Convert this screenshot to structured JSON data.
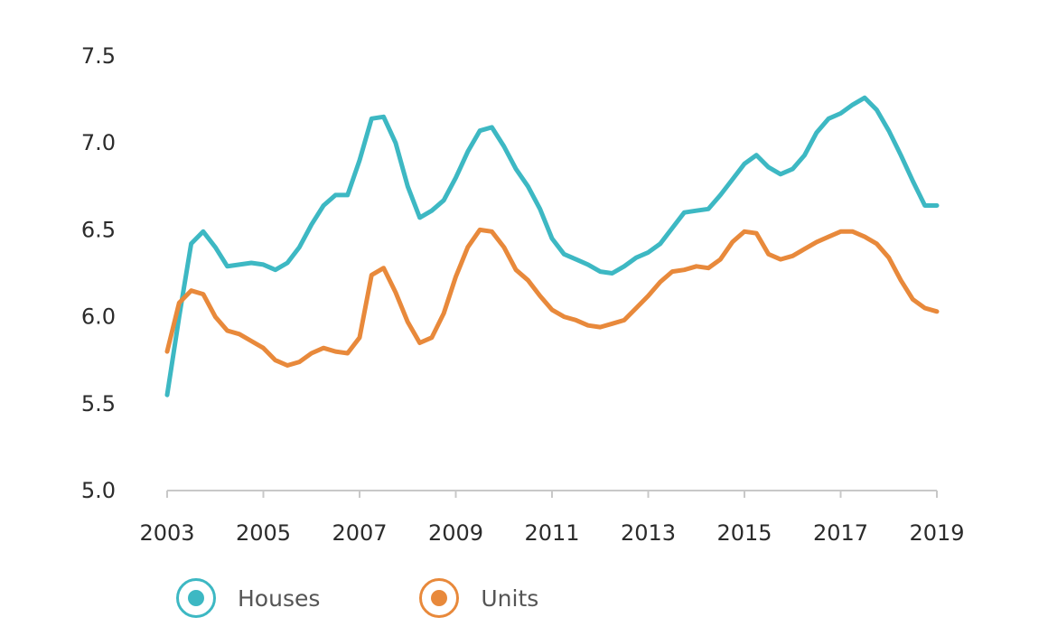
{
  "chart_data": {
    "type": "line",
    "title": "",
    "xlabel": "",
    "ylabel": "",
    "ylim": [
      5.0,
      7.5
    ],
    "xlim": [
      2003,
      2019
    ],
    "y_ticks": [
      "5.0",
      "5.5",
      "6.0",
      "6.5",
      "7.0",
      "7.5"
    ],
    "x_ticks": [
      "2003",
      "2005",
      "2007",
      "2009",
      "2011",
      "2013",
      "2015",
      "2017",
      "2019"
    ],
    "grid": false,
    "legend_position": "bottom",
    "series": [
      {
        "name": "Houses",
        "color": "#3db8c3",
        "x": [
          2003.0,
          2003.25,
          2003.5,
          2003.75,
          2004.0,
          2004.25,
          2004.5,
          2004.75,
          2005.0,
          2005.25,
          2005.5,
          2005.75,
          2006.0,
          2006.25,
          2006.5,
          2006.75,
          2007.0,
          2007.25,
          2007.5,
          2007.75,
          2008.0,
          2008.25,
          2008.5,
          2008.75,
          2009.0,
          2009.25,
          2009.5,
          2009.75,
          2010.0,
          2010.25,
          2010.5,
          2010.75,
          2011.0,
          2011.25,
          2011.5,
          2011.75,
          2012.0,
          2012.25,
          2012.5,
          2012.75,
          2013.0,
          2013.25,
          2013.5,
          2013.75,
          2014.0,
          2014.25,
          2014.5,
          2014.75,
          2015.0,
          2015.25,
          2015.5,
          2015.75,
          2016.0,
          2016.25,
          2016.5,
          2016.75,
          2017.0,
          2017.25,
          2017.5,
          2017.75,
          2018.0,
          2018.25,
          2018.5,
          2018.75,
          2019.0
        ],
        "values": [
          5.55,
          6.0,
          6.42,
          6.49,
          6.4,
          6.29,
          6.3,
          6.31,
          6.3,
          6.27,
          6.31,
          6.4,
          6.53,
          6.64,
          6.7,
          6.7,
          6.9,
          7.14,
          7.15,
          7.0,
          6.75,
          6.57,
          6.61,
          6.67,
          6.8,
          6.95,
          7.07,
          7.09,
          6.98,
          6.85,
          6.75,
          6.62,
          6.45,
          6.36,
          6.33,
          6.3,
          6.26,
          6.25,
          6.29,
          6.34,
          6.37,
          6.42,
          6.51,
          6.6,
          6.61,
          6.62,
          6.7,
          6.79,
          6.88,
          6.93,
          6.86,
          6.82,
          6.85,
          6.93,
          7.06,
          7.14,
          7.17,
          7.22,
          7.26,
          7.19,
          7.07,
          6.93,
          6.78,
          6.64,
          6.64
        ]
      },
      {
        "name": "Units",
        "color": "#e8893b",
        "x": [
          2003.0,
          2003.25,
          2003.5,
          2003.75,
          2004.0,
          2004.25,
          2004.5,
          2004.75,
          2005.0,
          2005.25,
          2005.5,
          2005.75,
          2006.0,
          2006.25,
          2006.5,
          2006.75,
          2007.0,
          2007.25,
          2007.5,
          2007.75,
          2008.0,
          2008.25,
          2008.5,
          2008.75,
          2009.0,
          2009.25,
          2009.5,
          2009.75,
          2010.0,
          2010.25,
          2010.5,
          2010.75,
          2011.0,
          2011.25,
          2011.5,
          2011.75,
          2012.0,
          2012.25,
          2012.5,
          2012.75,
          2013.0,
          2013.25,
          2013.5,
          2013.75,
          2014.0,
          2014.25,
          2014.5,
          2014.75,
          2015.0,
          2015.25,
          2015.5,
          2015.75,
          2016.0,
          2016.25,
          2016.5,
          2016.75,
          2017.0,
          2017.25,
          2017.5,
          2017.75,
          2018.0,
          2018.25,
          2018.5,
          2018.75,
          2019.0
        ],
        "values": [
          5.8,
          6.08,
          6.15,
          6.13,
          6.0,
          5.92,
          5.9,
          5.86,
          5.82,
          5.75,
          5.72,
          5.74,
          5.79,
          5.82,
          5.8,
          5.79,
          5.88,
          6.24,
          6.28,
          6.14,
          5.97,
          5.85,
          5.88,
          6.02,
          6.23,
          6.4,
          6.5,
          6.49,
          6.4,
          6.27,
          6.21,
          6.12,
          6.04,
          6.0,
          5.98,
          5.95,
          5.94,
          5.96,
          5.98,
          6.05,
          6.12,
          6.2,
          6.26,
          6.27,
          6.29,
          6.28,
          6.33,
          6.43,
          6.49,
          6.48,
          6.36,
          6.33,
          6.35,
          6.39,
          6.43,
          6.46,
          6.49,
          6.49,
          6.46,
          6.42,
          6.34,
          6.21,
          6.1,
          6.05,
          6.03
        ]
      }
    ]
  }
}
